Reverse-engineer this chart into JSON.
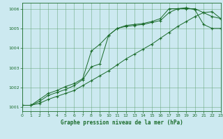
{
  "xlabel": "Graphe pression niveau de la mer (hPa)",
  "ylim": [
    1000.8,
    1006.3
  ],
  "xlim": [
    0,
    23
  ],
  "yticks": [
    1001,
    1002,
    1003,
    1004,
    1005,
    1006
  ],
  "xticks": [
    0,
    1,
    2,
    3,
    4,
    5,
    6,
    7,
    8,
    9,
    10,
    11,
    12,
    13,
    14,
    15,
    16,
    17,
    18,
    19,
    20,
    21,
    22,
    23
  ],
  "bg_color": "#cce9f0",
  "grid_color": "#5a9f6e",
  "line_color": "#1a6b2a",
  "line1_y": [
    1001.1,
    1001.1,
    1001.4,
    1001.7,
    1001.85,
    1002.05,
    1002.2,
    1002.45,
    1003.85,
    1004.2,
    1004.65,
    1005.0,
    1005.15,
    1005.2,
    1005.25,
    1005.35,
    1005.5,
    1006.0,
    1006.0,
    1006.05,
    1005.95,
    1005.2,
    1005.0,
    1005.0
  ],
  "line2_y": [
    1001.1,
    1001.1,
    1001.3,
    1001.6,
    1001.75,
    1001.9,
    1002.1,
    1002.4,
    1003.05,
    1003.2,
    1004.65,
    1005.0,
    1005.1,
    1005.15,
    1005.2,
    1005.3,
    1005.4,
    1005.8,
    1006.0,
    1006.0,
    1006.0,
    1005.8,
    1005.6,
    1005.5
  ],
  "line3_y": [
    1001.1,
    1001.1,
    1001.2,
    1001.4,
    1001.55,
    1001.7,
    1001.85,
    1002.1,
    1002.35,
    1002.6,
    1002.85,
    1003.15,
    1003.45,
    1003.7,
    1003.95,
    1004.2,
    1004.5,
    1004.8,
    1005.1,
    1005.35,
    1005.6,
    1005.8,
    1005.85,
    1005.5
  ]
}
